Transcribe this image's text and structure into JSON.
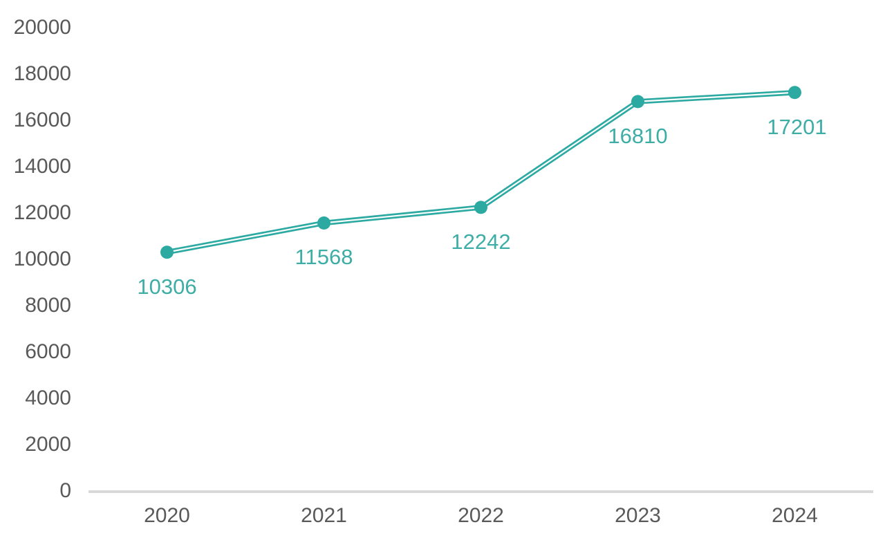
{
  "chart_data": {
    "type": "line",
    "categories": [
      "2020",
      "2021",
      "2022",
      "2023",
      "2024"
    ],
    "series": [
      {
        "name": "annual-values",
        "values": [
          10306,
          11568,
          12242,
          16810,
          17201
        ]
      }
    ],
    "data_labels": [
      "10306",
      "11568",
      "12242",
      "16810",
      "17201"
    ],
    "title": "",
    "xlabel": "",
    "ylabel": "",
    "ylim": [
      0,
      20000
    ],
    "ytick_step": 2000,
    "yticks": [
      "0",
      "2000",
      "4000",
      "6000",
      "8000",
      "10000",
      "12000",
      "14000",
      "16000",
      "18000",
      "20000"
    ],
    "ytick_values": [
      0,
      2000,
      4000,
      6000,
      8000,
      10000,
      12000,
      14000,
      16000,
      18000,
      20000
    ],
    "grid": false,
    "legend_position": "none",
    "colors": {
      "line": "#2caaa2",
      "line_inner_stripe": "#ffffff",
      "marker": "#2caaa2",
      "data_label_text": "#3dada6",
      "axis_text": "#595959",
      "axis_line": "#d9d9d9",
      "background": "#ffffff"
    }
  }
}
